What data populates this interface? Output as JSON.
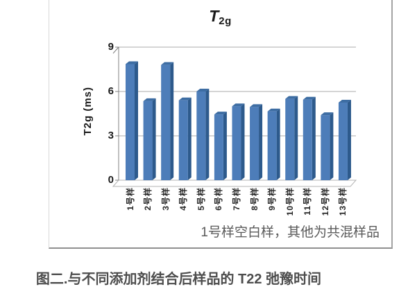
{
  "figure": {
    "title_main": "T",
    "title_sub": "2g",
    "y_axis_title": "T2g (ms)",
    "note": "1号样空白样，其他为共混样品",
    "caption": "图二.与不同添加剂结合后样品的 T22 弛豫时间"
  },
  "chart_data": {
    "type": "bar",
    "style": "3d",
    "title": "T2g",
    "xlabel": "",
    "ylabel": "T2g (ms)",
    "categories": [
      "1号样",
      "2号样",
      "3号样",
      "4号样",
      "5号样",
      "6号样",
      "7号样",
      "8号样",
      "9号样",
      "10号样",
      "11号样",
      "12号样",
      "13号样"
    ],
    "values": [
      7.85,
      5.35,
      7.8,
      5.4,
      6.0,
      4.45,
      5.0,
      4.95,
      4.65,
      5.5,
      5.45,
      4.4,
      5.25
    ],
    "ylim": [
      0,
      9
    ],
    "yticks": [
      0,
      3,
      6,
      9
    ],
    "grid": true,
    "legend": false,
    "annotation": "1号样空白样，其他为共混样品"
  },
  "colors": {
    "bar_front": "#4d7db9",
    "bar_side": "#2d5a8c",
    "bar_top": "#3d6da3",
    "gridline": "#ababab",
    "axis": "#7f7f7f",
    "floor_stroke": "#b3b3b3",
    "floor_fill": "#ffffff"
  }
}
